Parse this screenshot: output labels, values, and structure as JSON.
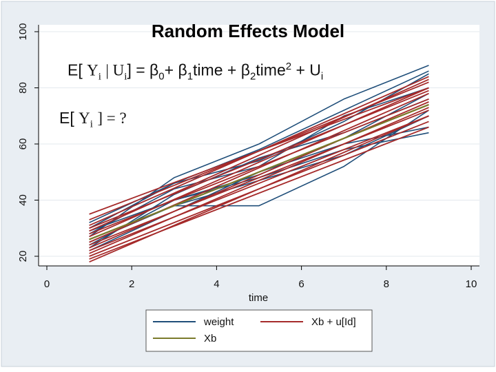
{
  "chart_data": {
    "type": "line",
    "title": "Random Effects Model",
    "equation1": {
      "prefix": "E[",
      "y_sym": "Y",
      "y_sub": "i",
      "cond": "| U",
      "cond_sub": "i",
      "rest": "] = β",
      "b0_sub": "0",
      "t1": "+ β",
      "b1_sub": "1",
      "t2": "time + β",
      "b2_sub": "2",
      "t3": "time",
      "t3_sup": "2",
      "t4": " + U",
      "u_sub": "i"
    },
    "equation2": {
      "prefix": "E[",
      "y_sym": "Y",
      "y_sub": "i",
      "rest": "] = ?"
    },
    "xlabel": "time",
    "ylabel": "",
    "xlim": [
      0,
      10
    ],
    "ylim": [
      20,
      100
    ],
    "x_ticks": [
      "0",
      "2",
      "4",
      "6",
      "8",
      "10"
    ],
    "y_ticks": [
      "20",
      "40",
      "60",
      "80",
      "100"
    ],
    "grid": true,
    "legend": {
      "position": "bottom",
      "entries": [
        {
          "label": "weight",
          "color": "#1f4e79"
        },
        {
          "label": "Xb + u[Id]",
          "color": "#a52a2a"
        },
        {
          "label": "Xb",
          "color": "#7a7a2a"
        }
      ]
    },
    "series": [
      {
        "name": "Xb",
        "x": [
          1,
          9
        ],
        "values": [
          26,
          74
        ],
        "color": "#7a7a2a"
      },
      {
        "name": "Xb + u[Id]",
        "color": "#a52a2a",
        "lines": [
          {
            "x": [
              1,
              9
            ],
            "values": [
              35,
              80
            ]
          },
          {
            "x": [
              1,
              9
            ],
            "values": [
              33,
              82
            ]
          },
          {
            "x": [
              1,
              9
            ],
            "values": [
              31,
              84
            ]
          },
          {
            "x": [
              1,
              9
            ],
            "values": [
              30,
              79
            ]
          },
          {
            "x": [
              1,
              9
            ],
            "values": [
              29,
              83
            ]
          },
          {
            "x": [
              1,
              9
            ],
            "values": [
              28,
              76
            ]
          },
          {
            "x": [
              1,
              9
            ],
            "values": [
              27,
              80
            ]
          },
          {
            "x": [
              1,
              9
            ],
            "values": [
              26,
              74
            ]
          },
          {
            "x": [
              1,
              9
            ],
            "values": [
              25,
              78
            ]
          },
          {
            "x": [
              1,
              9
            ],
            "values": [
              24,
              72
            ]
          },
          {
            "x": [
              1,
              9
            ],
            "values": [
              23,
              75
            ]
          },
          {
            "x": [
              1,
              9
            ],
            "values": [
              22,
              70
            ]
          },
          {
            "x": [
              1,
              9
            ],
            "values": [
              21,
              73
            ]
          },
          {
            "x": [
              1,
              9
            ],
            "values": [
              20,
              68
            ]
          },
          {
            "x": [
              1,
              9
            ],
            "values": [
              19,
              66
            ]
          },
          {
            "x": [
              1,
              9
            ],
            "values": [
              18,
              70
            ]
          }
        ]
      },
      {
        "name": "weight",
        "color": "#1f4e79",
        "lines": [
          {
            "x": [
              1,
              3,
              5,
              7,
              9
            ],
            "values": [
              30,
              46,
              54,
              68,
              85
            ]
          },
          {
            "x": [
              1,
              3,
              5,
              7,
              9
            ],
            "values": [
              27,
              48,
              60,
              76,
              88
            ]
          },
          {
            "x": [
              1,
              3,
              5,
              7,
              9
            ],
            "values": [
              25,
              38,
              38,
              52,
              72
            ]
          },
          {
            "x": [
              1,
              3,
              5,
              7,
              9
            ],
            "values": [
              22,
              36,
              50,
              60,
              66
            ]
          },
          {
            "x": [
              1,
              3,
              5,
              7,
              9
            ],
            "values": [
              28,
              44,
              52,
              70,
              80
            ]
          },
          {
            "x": [
              1,
              3,
              5,
              7,
              9
            ],
            "values": [
              24,
              40,
              48,
              58,
              64
            ]
          },
          {
            "x": [
              1,
              3,
              5,
              7,
              9
            ],
            "values": [
              32,
              46,
              58,
              72,
              86
            ]
          },
          {
            "x": [
              1,
              3,
              5,
              7,
              9
            ],
            "values": [
              26,
              38,
              47,
              56,
              70
            ]
          },
          {
            "x": [
              1,
              3,
              5,
              7,
              9
            ],
            "values": [
              23,
              42,
              55,
              64,
              76
            ]
          },
          {
            "x": [
              1,
              3,
              5,
              7,
              9
            ],
            "values": [
              29,
              40,
              49,
              62,
              78
            ]
          }
        ]
      }
    ]
  }
}
